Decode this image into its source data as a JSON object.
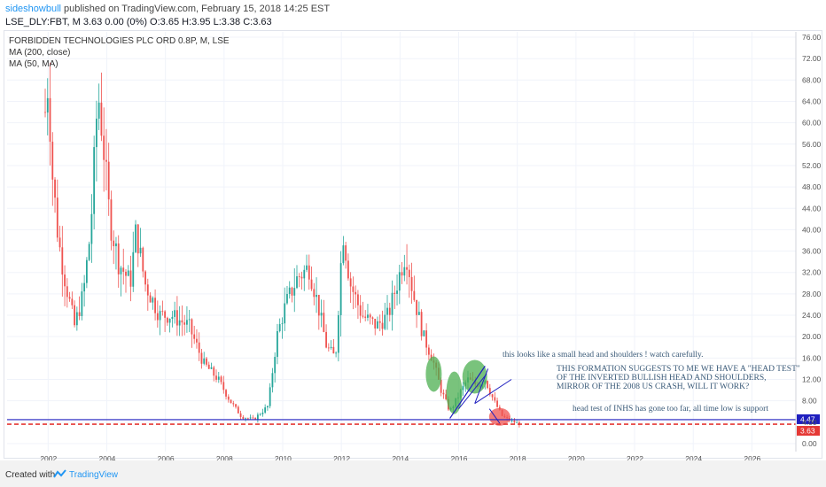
{
  "header": {
    "author": "sideshowbull",
    "published_text": "published on TradingView.com, February 15, 2018 14:25 EST",
    "quote_line": "LSE_DLY:FBT, M  3.63 0.00 (0%) O:3.65 H:3.95 L:3.38 C:3.63"
  },
  "legend": {
    "title": "FORBIDDEN TECHNOLOGIES PLC ORD 0.8P, M, LSE",
    "ma200": "MA (200, close)",
    "ma50": "MA (50, MA)"
  },
  "annotations": {
    "small_hs": "this looks like a small head and shoulders ! watch carefully.",
    "formation_1": "THIS FORMATION SUGGESTS TO ME WE HAVE A \"HEAD TEST\"",
    "formation_2": "OF THE INVERTED BULLISH HEAD AND SHOULDERS,",
    "formation_3": "MIRROR OF THE 2008 US CRASH, WILL IT WORK?",
    "head_test": "head test of INHS has gone too far, all time low is support"
  },
  "footer": {
    "created_with": "Created with",
    "brand": "TradingView"
  },
  "colors": {
    "up": "#26a69a",
    "down": "#ef5350",
    "support_line": "#1f1fbf",
    "current_line": "#e53935",
    "green_highlight": "#4caf50",
    "red_highlight": "#ef5350"
  },
  "chart_data": {
    "type": "candlestick",
    "title": "FORBIDDEN TECHNOLOGIES PLC ORD 0.8P, M, LSE",
    "x_ticks": [
      2002,
      2004,
      2006,
      2008,
      2010,
      2012,
      2014,
      2016,
      2018,
      2020,
      2022,
      2024,
      2026
    ],
    "y_ticks": [
      0,
      4,
      8,
      12,
      16,
      20,
      24,
      28,
      32,
      36,
      40,
      44,
      48,
      52,
      56,
      60,
      64,
      68,
      72,
      76
    ],
    "y_tick_labels": [
      "0.00",
      "4.00",
      "8.00",
      "12.00",
      "16.00",
      "20.00",
      "24.00",
      "28.00",
      "32.00",
      "36.00",
      "40.00",
      "44.00",
      "48.00",
      "52.00",
      "56.00",
      "60.00",
      "64.00",
      "68.00",
      "72.00",
      "76.00"
    ],
    "xlim": [
      2000.6,
      2027.5
    ],
    "ylim": [
      -1.5,
      77
    ],
    "horizontal_lines": [
      {
        "value": 4.47,
        "label": "4.47",
        "style": "solid",
        "color": "#1f1fbf"
      },
      {
        "value": 3.63,
        "label": "3.63",
        "style": "dashed",
        "color": "#e53935"
      }
    ],
    "anchors": [
      {
        "t": 2001.9,
        "p": 62
      },
      {
        "t": 2002.0,
        "p": 68
      },
      {
        "t": 2002.15,
        "p": 50
      },
      {
        "t": 2002.35,
        "p": 38
      },
      {
        "t": 2002.6,
        "p": 30
      },
      {
        "t": 2002.9,
        "p": 22
      },
      {
        "t": 2003.2,
        "p": 28
      },
      {
        "t": 2003.45,
        "p": 40
      },
      {
        "t": 2003.7,
        "p": 66
      },
      {
        "t": 2003.85,
        "p": 58
      },
      {
        "t": 2004.1,
        "p": 42
      },
      {
        "t": 2004.4,
        "p": 34
      },
      {
        "t": 2004.8,
        "p": 30
      },
      {
        "t": 2005.0,
        "p": 40
      },
      {
        "t": 2005.3,
        "p": 30
      },
      {
        "t": 2005.8,
        "p": 24
      },
      {
        "t": 2006.2,
        "p": 24
      },
      {
        "t": 2006.8,
        "p": 22
      },
      {
        "t": 2007.3,
        "p": 15
      },
      {
        "t": 2007.8,
        "p": 12
      },
      {
        "t": 2008.2,
        "p": 8
      },
      {
        "t": 2008.6,
        "p": 5
      },
      {
        "t": 2009.0,
        "p": 4.5
      },
      {
        "t": 2009.5,
        "p": 7
      },
      {
        "t": 2009.8,
        "p": 20
      },
      {
        "t": 2010.1,
        "p": 26
      },
      {
        "t": 2010.5,
        "p": 31
      },
      {
        "t": 2010.9,
        "p": 33
      },
      {
        "t": 2011.2,
        "p": 26
      },
      {
        "t": 2011.5,
        "p": 18
      },
      {
        "t": 2011.8,
        "p": 16
      },
      {
        "t": 2012.05,
        "p": 40
      },
      {
        "t": 2012.3,
        "p": 30
      },
      {
        "t": 2012.7,
        "p": 24
      },
      {
        "t": 2013.2,
        "p": 22
      },
      {
        "t": 2013.6,
        "p": 24
      },
      {
        "t": 2014.0,
        "p": 32
      },
      {
        "t": 2014.2,
        "p": 36
      },
      {
        "t": 2014.45,
        "p": 28
      },
      {
        "t": 2014.8,
        "p": 20
      },
      {
        "t": 2015.1,
        "p": 16
      },
      {
        "t": 2015.4,
        "p": 10
      },
      {
        "t": 2015.7,
        "p": 6
      },
      {
        "t": 2016.0,
        "p": 9
      },
      {
        "t": 2016.3,
        "p": 12
      },
      {
        "t": 2016.6,
        "p": 11
      },
      {
        "t": 2016.9,
        "p": 12
      },
      {
        "t": 2017.2,
        "p": 8
      },
      {
        "t": 2017.5,
        "p": 5
      },
      {
        "t": 2017.8,
        "p": 4.2
      },
      {
        "t": 2018.1,
        "p": 3.63
      }
    ]
  }
}
